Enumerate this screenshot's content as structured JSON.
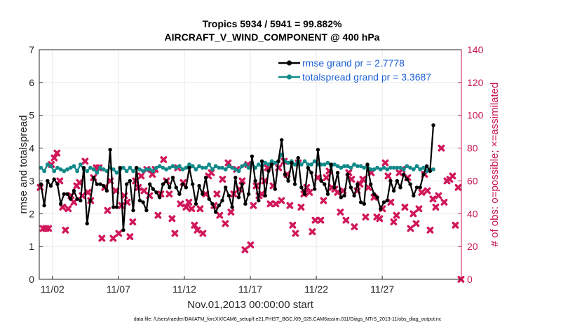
{
  "chart_data": {
    "type": "line",
    "title_line1": "Tropics 5934 / 5941 = 99.882%",
    "title_line2": "AIRCRAFT_V_WIND_COMPONENT @ 400 hPa",
    "xlabel": "Nov.01,2013 00:00:00 start",
    "ylabel_left": "rmse and totalspread",
    "ylabel_right": "# of obs: o=possible; ×=assimilated",
    "footer": "data file: /Users/raeder/DAI/ATM_forcXX/CAM6_setup/f.e21.FHIST_BGC.f09_025.CAM6assim.011/Diags_NTrS_2013-11/obs_diag_output.nc",
    "xlim": [
      1,
      33
    ],
    "ylim_left": [
      0,
      7
    ],
    "ylim_right": [
      0,
      140
    ],
    "x_ticks": [
      2,
      7,
      12,
      17,
      22,
      27
    ],
    "x_tick_labels": [
      "11/02",
      "11/07",
      "11/12",
      "11/17",
      "11/22",
      "11/27"
    ],
    "y_ticks_left": [
      0,
      1,
      2,
      3,
      4,
      5,
      6,
      7
    ],
    "y_ticks_right": [
      0,
      20,
      40,
      60,
      80,
      100,
      120,
      140
    ],
    "grid": true,
    "legend_position": "top-right",
    "series": [
      {
        "name": "rmse grand pr = 2.7778",
        "color": "#000000",
        "axis": "left",
        "x_start": 1.125,
        "x_step": 0.25,
        "values": [
          2.9,
          2.25,
          3.0,
          2.85,
          3.05,
          2.9,
          2.3,
          2.6,
          2.6,
          2.45,
          2.7,
          2.45,
          2.4,
          3.4,
          1.7,
          2.4,
          3.1,
          2.9,
          2.9,
          2.85,
          2.7,
          3.95,
          2.2,
          2.2,
          3.4,
          1.5,
          2.9,
          3.0,
          2.1,
          3.4,
          2.4,
          2.35,
          2.1,
          2.9,
          2.75,
          2.65,
          2.5,
          2.9,
          3.0,
          2.8,
          3.1,
          2.8,
          2.6,
          2.9,
          2.8,
          3.4,
          2.9,
          2.3,
          2.85,
          2.6,
          3.1,
          2.45,
          2.3,
          2.05,
          2.25,
          2.4,
          2.8,
          2.55,
          2.2,
          3.1,
          2.5,
          2.9,
          2.3,
          2.6,
          3.75,
          3.0,
          2.4,
          3.6,
          2.55,
          3.3,
          3.5,
          2.75,
          3.6,
          4.25,
          3.2,
          3.0,
          3.55,
          2.9,
          3.7,
          2.8,
          2.6,
          3.4,
          3.25,
          2.75,
          3.95,
          3.0,
          2.9,
          2.6,
          3.5,
          2.8,
          3.25,
          2.5,
          2.55,
          3.2,
          2.8,
          2.55,
          2.9,
          2.35,
          2.3,
          3.5,
          2.9,
          2.6,
          2.5,
          2.15,
          2.35,
          2.4,
          3.0,
          2.7,
          3.0,
          2.8,
          3.2,
          3.05,
          2.9,
          2.55,
          2.8,
          2.8,
          3.2,
          3.45,
          3.3,
          4.7
        ]
      },
      {
        "name": "totalspread grand pr = 3.3687",
        "color": "#138a8a",
        "axis": "left",
        "x_start": 1.125,
        "x_step": 0.25,
        "values": [
          3.4,
          3.3,
          3.5,
          3.45,
          3.3,
          3.4,
          3.35,
          3.3,
          3.35,
          3.4,
          3.45,
          3.3,
          3.5,
          3.35,
          3.3,
          3.4,
          3.35,
          3.25,
          3.4,
          3.35,
          3.3,
          3.4,
          3.35,
          3.25,
          3.35,
          3.4,
          3.3,
          3.4,
          3.3,
          3.4,
          3.35,
          3.3,
          3.35,
          3.35,
          3.3,
          3.4,
          3.45,
          3.4,
          3.35,
          3.4,
          3.45,
          3.4,
          3.45,
          3.35,
          3.4,
          3.5,
          3.45,
          3.35,
          3.45,
          3.4,
          3.4,
          3.5,
          3.35,
          3.45,
          3.4,
          3.4,
          3.35,
          3.45,
          3.4,
          3.35,
          3.3,
          3.45,
          3.5,
          3.4,
          3.55,
          3.4,
          3.5,
          3.45,
          3.55,
          3.5,
          3.6,
          3.55,
          3.6,
          3.8,
          3.6,
          3.55,
          3.6,
          3.5,
          3.6,
          3.5,
          3.6,
          3.5,
          3.5,
          3.6,
          3.5,
          3.5,
          3.5,
          3.55,
          3.45,
          3.5,
          3.45,
          3.4,
          3.45,
          3.45,
          3.4,
          3.5,
          3.45,
          3.45,
          3.4,
          3.45,
          3.35,
          3.35,
          3.4,
          3.35,
          3.4,
          3.35,
          3.4,
          3.4,
          3.4,
          3.4,
          3.35,
          3.45,
          3.4,
          3.35,
          3.45,
          3.35,
          3.4,
          3.3,
          3.35,
          3.35
        ]
      },
      {
        "name": "obs assimilated",
        "color": "#d0175a",
        "axis": "right",
        "marker": "cross",
        "x_start": 1.125,
        "x_step": 0.25,
        "values": [
          56,
          31,
          31,
          31,
          70,
          74,
          77,
          60,
          44,
          30,
          43,
          51,
          47,
          57,
          59,
          51,
          72,
          53,
          48,
          62,
          68,
          68,
          25,
          56,
          42,
          60,
          25,
          54,
          28,
          45,
          51,
          47,
          26,
          35,
          60,
          56,
          63,
          54,
          67,
          51,
          64,
          67,
          39,
          52,
          73,
          60,
          52,
          37,
          28,
          68,
          46,
          59,
          44,
          47,
          43,
          33,
          30,
          43,
          28,
          52,
          63,
          65,
          45,
          52,
          39,
          61,
          34,
          71,
          41,
          52,
          67,
          55,
          60,
          18,
          70,
          21,
          45,
          57,
          51,
          52,
          60,
          68,
          46,
          57,
          46,
          68,
          48,
          72,
          64,
          45,
          33,
          28,
          71,
          44,
          52,
          56,
          53,
          29,
          36,
          62,
          36,
          48,
          62,
          66,
          56,
          55,
          53,
          41,
          54,
          36,
          65,
          61,
          32,
          54,
          58,
          61,
          38,
          56,
          65,
          50,
          38,
          37,
          43,
          71,
          63,
          47,
          35,
          39,
          65,
          67,
          44,
          62,
          31,
          40,
          34,
          43,
          53,
          64,
          54,
          30,
          49,
          44,
          51,
          80,
          47,
          60,
          61,
          63,
          33,
          56,
          0
        ],
        "x_values_note": "assimilated obs plotted every ~0.21 days"
      }
    ]
  }
}
